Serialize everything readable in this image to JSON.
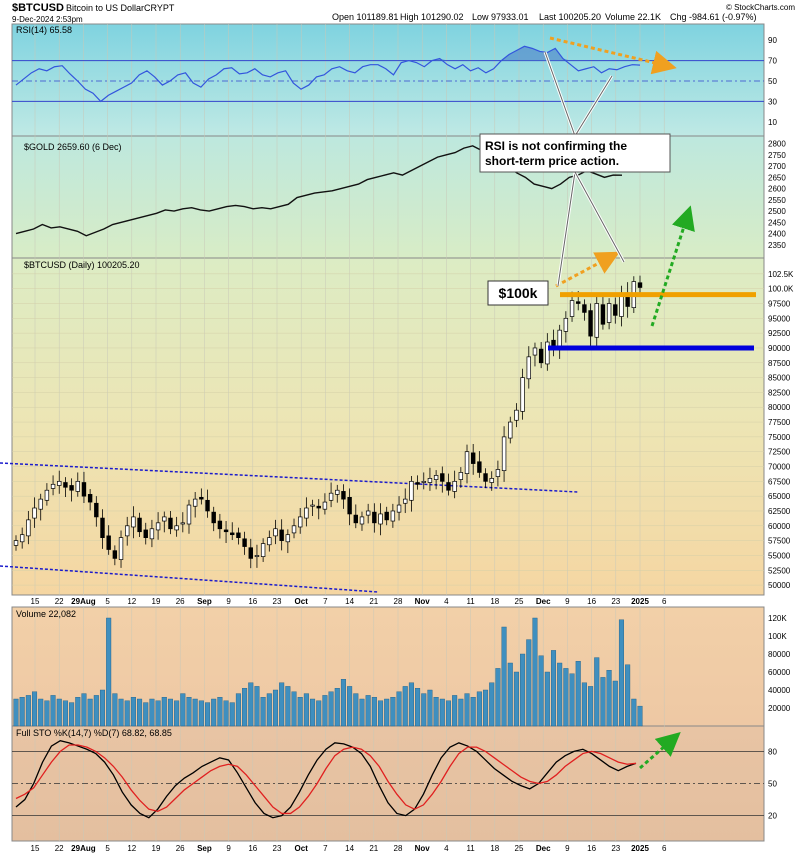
{
  "header": {
    "symbol": "$BTCUSD",
    "name": "Bitcoin to US Dollar",
    "exchange": "CRYPT",
    "date": "9-Dec-2024 2:53pm",
    "open": "Open 101189.81",
    "high": "High 101290.02",
    "low": "Low 97933.01",
    "last": "Last 100205.20",
    "volume": "Volume 22.1K",
    "chg": "Chg -984.61 (-0.97%)",
    "credit": "© StockCharts.com"
  },
  "colors": {
    "up": "#ffffff",
    "down": "#000000",
    "rsi_line": "#3355dd",
    "volume_bar": "#3f8fbf",
    "sto_k": "#000000",
    "sto_d": "#e02020",
    "channel": "#1a1acc",
    "resistance": "#f0a000",
    "support": "#0000dd",
    "arrow_orange": "#f0a020",
    "arrow_green": "#22aa22"
  },
  "annotations": {
    "callout": "RSI is not confirming the short-term price action.",
    "label_100k": "$100k"
  },
  "chart_data": [
    {
      "type": "line",
      "panel": "rsi",
      "title": "RSI(14) 65.58",
      "ylim": [
        0,
        100
      ],
      "y_ticks": [
        10,
        30,
        50,
        70,
        90
      ],
      "reference_lines": [
        30,
        50,
        70
      ],
      "values": [
        46,
        52,
        58,
        62,
        60,
        64,
        65,
        57,
        50,
        42,
        38,
        30,
        36,
        40,
        44,
        48,
        56,
        60,
        54,
        46,
        50,
        56,
        58,
        48,
        44,
        52,
        56,
        62,
        63,
        57,
        58,
        62,
        56,
        54,
        58,
        60,
        48,
        42,
        46,
        54,
        56,
        62,
        64,
        60,
        58,
        64,
        66,
        66,
        62,
        56,
        68,
        70,
        68,
        64,
        70,
        72,
        66,
        62,
        66,
        60,
        63,
        58,
        62,
        70,
        76,
        80,
        84,
        82,
        79,
        78,
        82,
        72,
        66,
        60,
        62,
        64,
        58,
        62,
        61,
        64,
        66,
        65.58
      ]
    },
    {
      "type": "line",
      "panel": "gold",
      "title": "$GOLD 2659.60 (6 Dec)",
      "ylim": [
        2300,
        2825
      ],
      "y_ticks": [
        2350,
        2400,
        2450,
        2500,
        2550,
        2600,
        2650,
        2700,
        2750,
        2800
      ],
      "values": [
        2400,
        2410,
        2420,
        2440,
        2425,
        2430,
        2420,
        2410,
        2390,
        2405,
        2420,
        2440,
        2450,
        2460,
        2470,
        2480,
        2490,
        2505,
        2500,
        2510,
        2515,
        2505,
        2500,
        2510,
        2520,
        2525,
        2520,
        2510,
        2515,
        2510,
        2520,
        2530,
        2560,
        2570,
        2580,
        2585,
        2590,
        2600,
        2610,
        2620,
        2640,
        2650,
        2660,
        2670,
        2660,
        2680,
        2700,
        2720,
        2740,
        2750,
        2760,
        2780,
        2790,
        2770,
        2750,
        2735,
        2700,
        2670,
        2650,
        2620,
        2610,
        2600,
        2620,
        2650,
        2660,
        2680,
        2665,
        2650,
        2660,
        2659.6
      ]
    },
    {
      "type": "candlestick",
      "panel": "price",
      "title": "$BTCUSD (Daily) 100205.20",
      "ylim": [
        49000,
        104500
      ],
      "y_ticks": [
        50000,
        52500,
        55000,
        57500,
        60000,
        62500,
        65000,
        67500,
        70000,
        72500,
        75000,
        77500,
        80000,
        82500,
        85000,
        87500,
        90000,
        92500,
        95000,
        97500,
        100000,
        102500
      ],
      "y_tick_labels": [
        "50000",
        "52500",
        "55000",
        "57500",
        "60000",
        "62500",
        "65000",
        "67500",
        "70000",
        "72500",
        "75000",
        "77500",
        "80000",
        "82500",
        "85000",
        "87500",
        "90000",
        "92500",
        "95000",
        "97500",
        "100.0K",
        "102.5K"
      ],
      "close": [
        57500,
        58500,
        61000,
        63000,
        64500,
        66000,
        67000,
        67500,
        66500,
        66000,
        67500,
        65000,
        64000,
        61500,
        58000,
        56000,
        54500,
        58000,
        60000,
        61500,
        59000,
        58000,
        59500,
        60500,
        61500,
        59500,
        60000,
        60500,
        63500,
        64500,
        64500,
        62500,
        60500,
        59500,
        59000,
        58500,
        58000,
        56500,
        54500,
        55000,
        57000,
        58000,
        59500,
        57500,
        58500,
        60000,
        61500,
        63000,
        63500,
        63000,
        64000,
        65500,
        66000,
        64500,
        62000,
        60500,
        61500,
        62500,
        60500,
        62000,
        61000,
        62500,
        63500,
        64500,
        67500,
        67000,
        67500,
        68000,
        68500,
        67500,
        66000,
        67500,
        69000,
        72500,
        70500,
        69000,
        67500,
        68000,
        69500,
        75000,
        77500,
        79500,
        85000,
        88500,
        90000,
        87500,
        91000,
        90000,
        93000,
        95000,
        98000,
        97500,
        96000,
        92000,
        97500,
        94000,
        97500,
        95500,
        99000,
        97000,
        101200,
        100205
      ],
      "supports_resistance": {
        "resistance": 99000,
        "support": 90000
      }
    },
    {
      "type": "bar",
      "panel": "volume",
      "title": "Volume 22,082",
      "ylim": [
        0,
        130000
      ],
      "y_ticks": [
        20000,
        40000,
        60000,
        80000,
        100000,
        120000
      ],
      "y_tick_labels": [
        "20000",
        "40000",
        "60000",
        "80000",
        "100K",
        "120K"
      ],
      "values": [
        30000,
        32000,
        34000,
        38000,
        30000,
        28000,
        34000,
        30000,
        28000,
        26000,
        32000,
        36000,
        30000,
        34000,
        40000,
        120000,
        36000,
        30000,
        28000,
        32000,
        30000,
        26000,
        30000,
        28000,
        32000,
        30000,
        28000,
        36000,
        32000,
        30000,
        28000,
        26000,
        30000,
        32000,
        28000,
        26000,
        36000,
        42000,
        48000,
        44000,
        32000,
        36000,
        40000,
        48000,
        44000,
        38000,
        32000,
        36000,
        30000,
        28000,
        34000,
        38000,
        42000,
        52000,
        44000,
        36000,
        30000,
        34000,
        32000,
        28000,
        30000,
        32000,
        38000,
        44000,
        48000,
        42000,
        36000,
        40000,
        32000,
        30000,
        28000,
        34000,
        30000,
        36000,
        32000,
        38000,
        40000,
        48000,
        64000,
        110000,
        70000,
        60000,
        80000,
        96000,
        120000,
        78000,
        60000,
        84000,
        70000,
        64000,
        58000,
        72000,
        48000,
        44000,
        76000,
        54000,
        62000,
        50000,
        118000,
        68000,
        30000,
        22082
      ]
    },
    {
      "type": "line",
      "panel": "stochastic",
      "title": "Full STO %K(14,7) %D(7) 68.82, 68.85",
      "ylim": [
        0,
        100
      ],
      "y_ticks": [
        20,
        50,
        80
      ],
      "reference_lines": [
        20,
        50,
        80
      ],
      "series": [
        {
          "name": "%K",
          "values": [
            28,
            35,
            50,
            70,
            85,
            90,
            88,
            85,
            82,
            78,
            70,
            58,
            42,
            30,
            22,
            18,
            26,
            38,
            48,
            55,
            60,
            66,
            70,
            74,
            72,
            60,
            46,
            32,
            22,
            18,
            20,
            28,
            42,
            58,
            72,
            82,
            88,
            87,
            84,
            78,
            66,
            48,
            32,
            22,
            20,
            26,
            40,
            58,
            74,
            84,
            88,
            85,
            80,
            72,
            64,
            58,
            52,
            48,
            45,
            50,
            60,
            70,
            76,
            80,
            82,
            78,
            72,
            66,
            62,
            66,
            68.82
          ]
        },
        {
          "name": "%D",
          "values": [
            36,
            40,
            46,
            58,
            70,
            80,
            86,
            86,
            84,
            80,
            74,
            66,
            56,
            44,
            34,
            26,
            24,
            28,
            36,
            44,
            50,
            56,
            62,
            66,
            68,
            66,
            58,
            48,
            38,
            28,
            22,
            22,
            28,
            38,
            50,
            64,
            76,
            82,
            84,
            82,
            76,
            66,
            52,
            40,
            30,
            26,
            30,
            40,
            52,
            66,
            78,
            84,
            84,
            80,
            74,
            68,
            62,
            56,
            52,
            50,
            52,
            58,
            66,
            72,
            78,
            80,
            78,
            74,
            70,
            68,
            68.85
          ]
        }
      ]
    }
  ],
  "x_axis": {
    "labels": [
      "15",
      "22",
      "29Aug",
      "5",
      "12",
      "19",
      "26",
      "Sep",
      "9",
      "16",
      "23",
      "Oct",
      "7",
      "14",
      "21",
      "28",
      "Nov",
      "4",
      "11",
      "18",
      "25",
      "Dec",
      "9",
      "16",
      "23",
      "2025",
      "6"
    ],
    "bold": [
      "Aug",
      "Sep",
      "Oct",
      "Nov",
      "Dec",
      "2025"
    ]
  }
}
